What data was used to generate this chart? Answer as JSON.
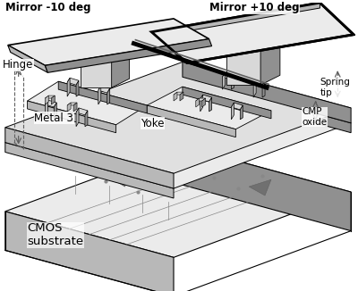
{
  "bg_color": "#ffffff",
  "labels": {
    "mirror_neg": "Mirror -10 deg",
    "mirror_pos": "Mirror +10 deg",
    "hinge": "Hinge",
    "metal3": "Metal 3",
    "yoke": "Yoke",
    "spring_tip": "Spring\ntip",
    "cmp_oxide": "CMP\noxide",
    "cmos": "CMOS\nsubstrate"
  },
  "colors": {
    "black": "#000000",
    "white": "#ffffff",
    "gray_vlight": "#ebebeb",
    "gray_light": "#d8d8d8",
    "gray_mid": "#b8b8b8",
    "gray_dark": "#909090",
    "gray_vdark": "#606060",
    "gray_deepdark": "#404040",
    "circuit_gray": "#888888",
    "triangle_fill": "#707070"
  },
  "label_fontsize": 8.5,
  "label_fontsize_sm": 7.5
}
